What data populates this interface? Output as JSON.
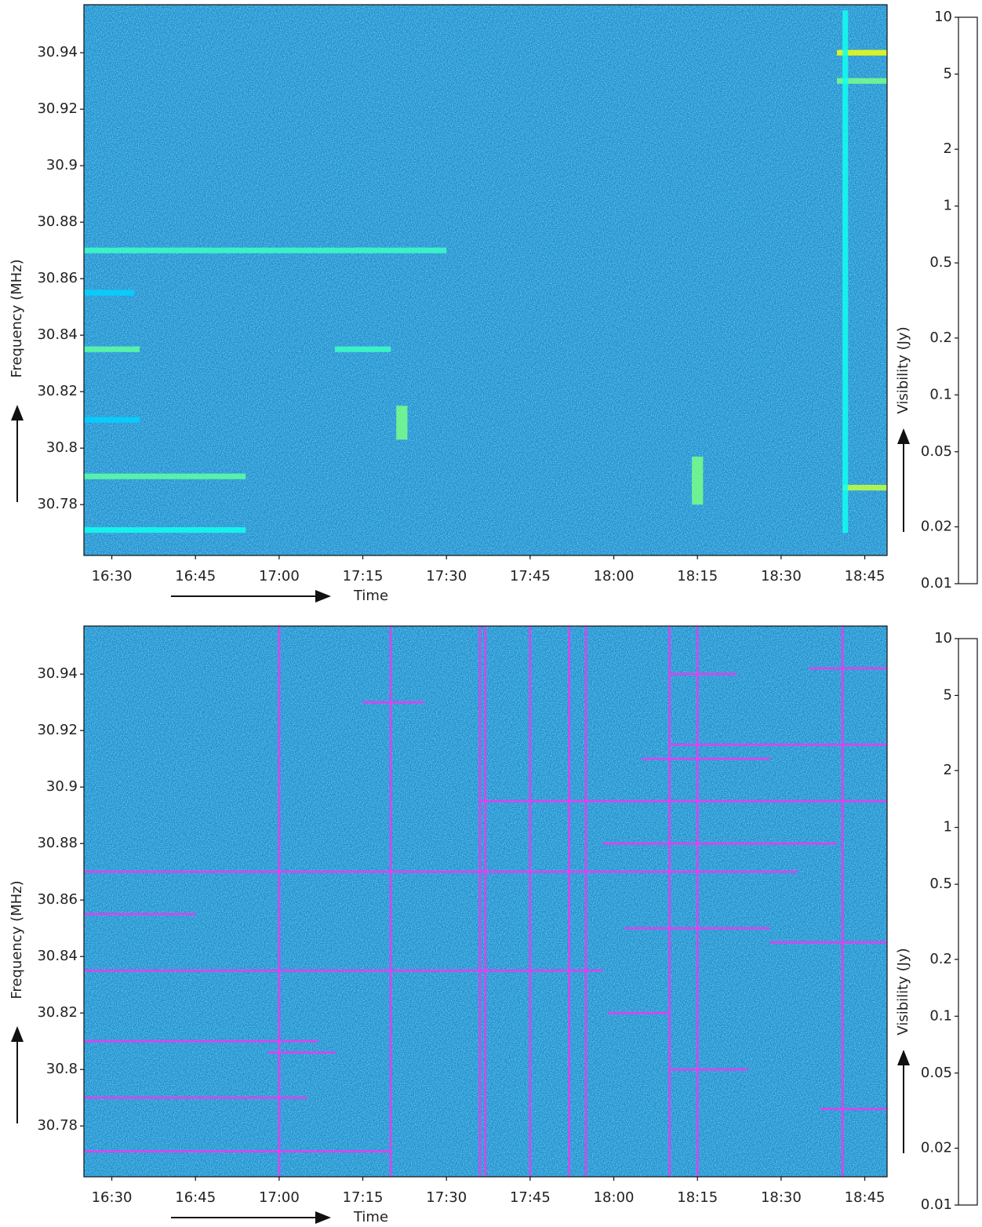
{
  "chart_data": [
    {
      "type": "heatmap",
      "ylabel": "Frequency (MHz)",
      "xlabel": "Time",
      "colorbar_label": "Visibility (Jy)",
      "colormap": "jet",
      "colorbar_log": true,
      "clim": [
        0.01,
        10
      ],
      "cticks": [
        0.01,
        0.02,
        0.05,
        0.1,
        0.2,
        0.5,
        1,
        2,
        5,
        10
      ],
      "xlim": [
        "16:25",
        "18:49"
      ],
      "xticks": [
        "16:30",
        "16:45",
        "17:00",
        "17:15",
        "17:30",
        "17:45",
        "18:00",
        "18:15",
        "18:30",
        "18:45"
      ],
      "ylim": [
        30.762,
        30.957
      ],
      "yticks": [
        30.78,
        30.8,
        30.82,
        30.84,
        30.86,
        30.88,
        30.9,
        30.92,
        30.94
      ],
      "background_color": "#1c8fcf",
      "segments": [
        {
          "t0": "16:25",
          "t1": "17:30",
          "f0": 30.869,
          "f1": 30.871,
          "value": 0.2
        },
        {
          "t0": "16:25",
          "t1": "16:35",
          "f0": 30.834,
          "f1": 30.836,
          "value": 0.25
        },
        {
          "t0": "17:10",
          "t1": "17:20",
          "f0": 30.834,
          "f1": 30.836,
          "value": 0.2
        },
        {
          "t0": "16:25",
          "t1": "16:54",
          "f0": 30.789,
          "f1": 30.791,
          "value": 0.25
        },
        {
          "t0": "16:25",
          "t1": "16:54",
          "f0": 30.77,
          "f1": 30.772,
          "value": 0.15
        },
        {
          "t0": "16:25",
          "t1": "16:35",
          "f0": 30.809,
          "f1": 30.811,
          "value": 0.1
        },
        {
          "t0": "16:25",
          "t1": "16:34",
          "f0": 30.854,
          "f1": 30.856,
          "value": 0.1
        },
        {
          "t0": "18:40",
          "t1": "18:49",
          "f0": 30.939,
          "f1": 30.941,
          "value": 0.7
        },
        {
          "t0": "18:41",
          "t1": "18:49",
          "f0": 30.785,
          "f1": 30.787,
          "value": 0.5
        },
        {
          "t0": "18:40",
          "t1": "18:49",
          "f0": 30.929,
          "f1": 30.931,
          "value": 0.3
        },
        {
          "t0": "17:21",
          "t1": "17:23",
          "f0": 30.803,
          "f1": 30.815,
          "value": 0.3
        },
        {
          "t0": "18:14",
          "t1": "18:16",
          "f0": 30.78,
          "f1": 30.797,
          "value": 0.3
        },
        {
          "t0": "18:41",
          "t1": "18:42",
          "f0": 30.77,
          "f1": 30.955,
          "value": 0.15
        }
      ]
    },
    {
      "type": "heatmap",
      "ylabel": "Frequency (MHz)",
      "xlabel": "Time",
      "colorbar_label": "Visibility (Jy)",
      "colormap": "jet",
      "colorbar_log": true,
      "clim": [
        0.01,
        10
      ],
      "cticks": [
        0.01,
        0.02,
        0.05,
        0.1,
        0.2,
        0.5,
        1,
        2,
        5,
        10
      ],
      "xlim": [
        "16:25",
        "18:49"
      ],
      "xticks": [
        "16:30",
        "16:45",
        "17:00",
        "17:15",
        "17:30",
        "17:45",
        "18:00",
        "18:15",
        "18:30",
        "18:45"
      ],
      "ylim": [
        30.762,
        30.957
      ],
      "yticks": [
        30.78,
        30.8,
        30.82,
        30.84,
        30.86,
        30.88,
        30.9,
        30.92,
        30.94
      ],
      "background_color": "#1c8fcf",
      "flag_color": "#e040f0",
      "flagged_times": [
        "17:00",
        "17:20",
        "17:36",
        "17:37",
        "17:45",
        "17:52",
        "17:55",
        "18:10",
        "18:15",
        "18:41"
      ],
      "flagged_channels": [
        {
          "f": 30.87,
          "t0": "16:25",
          "t1": "18:33"
        },
        {
          "f": 30.835,
          "t0": "16:25",
          "t1": "17:58"
        },
        {
          "f": 30.81,
          "t0": "16:25",
          "t1": "17:07"
        },
        {
          "f": 30.79,
          "t0": "16:25",
          "t1": "17:05"
        },
        {
          "f": 30.771,
          "t0": "16:25",
          "t1": "17:20"
        },
        {
          "f": 30.855,
          "t0": "16:25",
          "t1": "16:45"
        },
        {
          "f": 30.806,
          "t0": "16:58",
          "t1": "17:10"
        },
        {
          "f": 30.93,
          "t0": "17:15",
          "t1": "17:26"
        },
        {
          "f": 30.895,
          "t0": "17:36",
          "t1": "18:49"
        },
        {
          "f": 30.88,
          "t0": "17:58",
          "t1": "18:40"
        },
        {
          "f": 30.82,
          "t0": "17:59",
          "t1": "18:10"
        },
        {
          "f": 30.8,
          "t0": "18:10",
          "t1": "18:24"
        },
        {
          "f": 30.94,
          "t0": "18:10",
          "t1": "18:22"
        },
        {
          "f": 30.915,
          "t0": "18:10",
          "t1": "18:49"
        },
        {
          "f": 30.91,
          "t0": "18:05",
          "t1": "18:28"
        },
        {
          "f": 30.85,
          "t0": "18:02",
          "t1": "18:28"
        },
        {
          "f": 30.845,
          "t0": "18:28",
          "t1": "18:49"
        },
        {
          "f": 30.786,
          "t0": "18:37",
          "t1": "18:49"
        },
        {
          "f": 30.942,
          "t0": "18:35",
          "t1": "18:49"
        }
      ]
    }
  ]
}
